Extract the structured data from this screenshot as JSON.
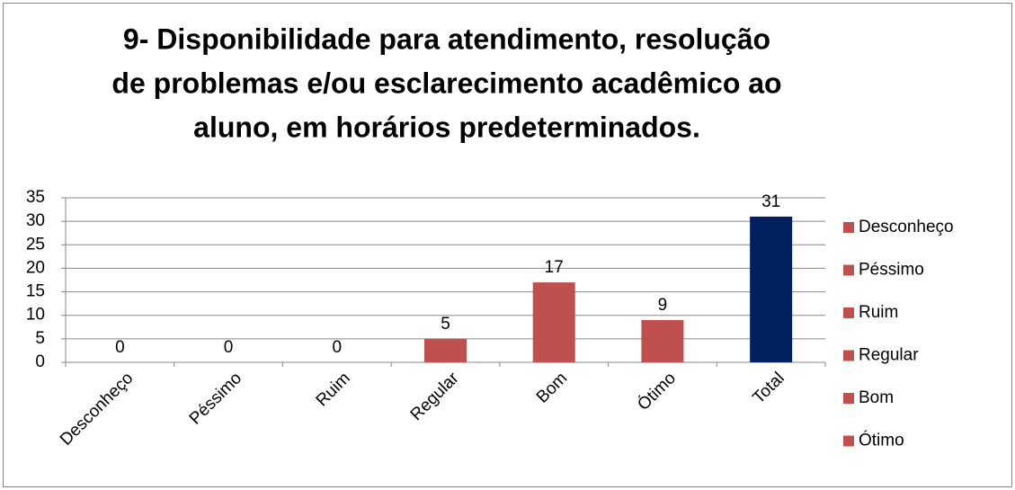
{
  "chart_data": {
    "type": "bar",
    "title": [
      "9- Disponibilidade para atendimento, resolução",
      "de problemas e/ou esclarecimento acadêmico ao",
      "aluno, em horários predeterminados."
    ],
    "categories": [
      "Desconheço",
      "Péssimo",
      "Ruim",
      "Regular",
      "Bom",
      "Ótimo",
      "Total"
    ],
    "values": [
      0,
      0,
      0,
      5,
      17,
      9,
      31
    ],
    "colors": [
      "#c0504d",
      "#c0504d",
      "#c0504d",
      "#c0504d",
      "#c0504d",
      "#c0504d",
      "#002060"
    ],
    "legend": {
      "position": "right",
      "color": "#c0504d",
      "entries": [
        "Desconheço",
        "Péssimo",
        "Ruim",
        "Regular",
        "Bom",
        "Ótimo"
      ]
    },
    "ylim": [
      0,
      35
    ],
    "yticks": [
      0,
      5,
      10,
      15,
      20,
      25,
      30,
      35
    ],
    "grid": true
  }
}
